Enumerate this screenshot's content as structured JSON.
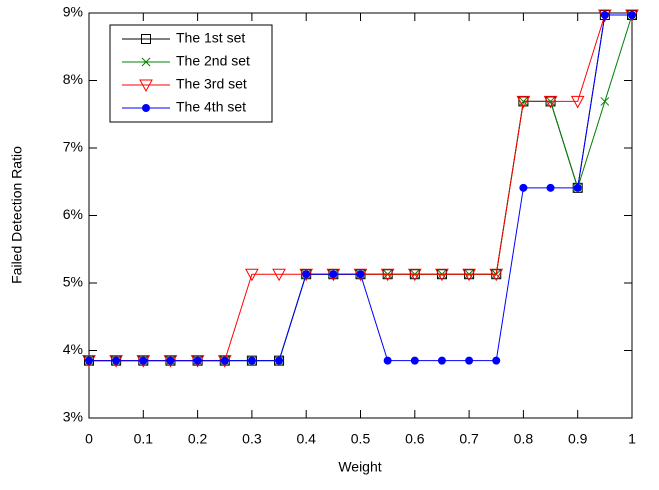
{
  "chart_data": {
    "type": "line",
    "x_label": "Weight",
    "y_label": "Failed Detection Ratio",
    "x": [
      0,
      0.05,
      0.1,
      0.15,
      0.2,
      0.25,
      0.3,
      0.35,
      0.4,
      0.45,
      0.5,
      0.55,
      0.6,
      0.65,
      0.7,
      0.75,
      0.8,
      0.85,
      0.9,
      0.95,
      1
    ],
    "series": [
      {
        "name": "The 1st set",
        "color": "#000000",
        "marker": "square",
        "values": [
          3.85,
          3.85,
          3.85,
          3.85,
          3.85,
          3.85,
          3.85,
          3.85,
          5.13,
          5.13,
          5.13,
          5.13,
          5.13,
          5.13,
          5.13,
          5.13,
          7.69,
          7.69,
          6.41,
          8.97,
          8.97
        ]
      },
      {
        "name": "The 2nd set",
        "color": "#008000",
        "marker": "x",
        "values": [
          3.85,
          3.85,
          3.85,
          3.85,
          3.85,
          3.85,
          3.85,
          3.85,
          5.13,
          5.13,
          5.13,
          5.13,
          5.13,
          5.13,
          5.13,
          5.13,
          7.69,
          7.69,
          6.41,
          7.69,
          8.97
        ]
      },
      {
        "name": "The 3rd set",
        "color": "#ff0000",
        "marker": "triangle-down",
        "values": [
          3.85,
          3.85,
          3.85,
          3.85,
          3.85,
          3.85,
          5.13,
          5.13,
          5.13,
          5.13,
          5.13,
          5.13,
          5.13,
          5.13,
          5.13,
          5.13,
          7.69,
          7.69,
          7.69,
          8.97,
          8.97
        ]
      },
      {
        "name": "The 4th set",
        "color": "#0000ff",
        "marker": "dot",
        "values": [
          3.85,
          3.85,
          3.85,
          3.85,
          3.85,
          3.85,
          3.85,
          3.85,
          5.13,
          5.13,
          5.13,
          3.85,
          3.85,
          3.85,
          3.85,
          3.85,
          6.41,
          6.41,
          6.41,
          8.97,
          8.97
        ]
      }
    ],
    "xlim": [
      0,
      1
    ],
    "ylim": [
      3,
      9
    ],
    "xticks": [
      0,
      0.1,
      0.2,
      0.3,
      0.4,
      0.5,
      0.6,
      0.7,
      0.8,
      0.9,
      1
    ],
    "yticks": [
      {
        "value": 3,
        "label": "3%"
      },
      {
        "value": 4,
        "label": "4%"
      },
      {
        "value": 5,
        "label": "5%"
      },
      {
        "value": 6,
        "label": "6%"
      },
      {
        "value": 7,
        "label": "7%"
      },
      {
        "value": 8,
        "label": "8%"
      },
      {
        "value": 9,
        "label": "9%"
      }
    ],
    "legend": "top-left"
  }
}
